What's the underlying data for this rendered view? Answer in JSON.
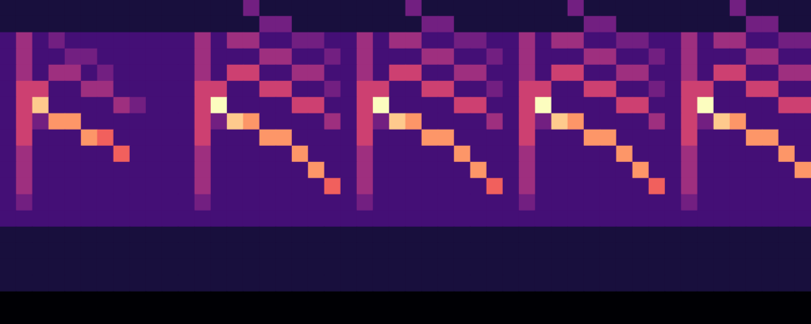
{
  "chart_data": {
    "type": "heatmap",
    "cells": [
      [
        1,
        1,
        1,
        1,
        1,
        1,
        1,
        1,
        1,
        1,
        1,
        1,
        1,
        1,
        1,
        3,
        1,
        1,
        1,
        1,
        1,
        1,
        1,
        1,
        1,
        3,
        1,
        1,
        1,
        1,
        1,
        1,
        1,
        1,
        1,
        3,
        1,
        1,
        1,
        1,
        1,
        1,
        1,
        1,
        1,
        3,
        1,
        1,
        1,
        1
      ],
      [
        1,
        1,
        1,
        1,
        1,
        1,
        1,
        1,
        1,
        1,
        1,
        1,
        1,
        1,
        1,
        1,
        3,
        3,
        1,
        1,
        1,
        1,
        1,
        1,
        1,
        1,
        3,
        3,
        1,
        1,
        1,
        1,
        1,
        1,
        1,
        1,
        3,
        3,
        1,
        1,
        1,
        1,
        1,
        1,
        1,
        1,
        3,
        3,
        1,
        1
      ],
      [
        2,
        4,
        2,
        3,
        2,
        2,
        2,
        2,
        2,
        2,
        2,
        2,
        4,
        2,
        4,
        4,
        2,
        2,
        3,
        3,
        2,
        2,
        4,
        2,
        4,
        4,
        2,
        2,
        3,
        3,
        2,
        2,
        4,
        2,
        4,
        4,
        2,
        2,
        3,
        3,
        2,
        2,
        4,
        2,
        4,
        4,
        2,
        2,
        3,
        3
      ],
      [
        2,
        4,
        2,
        2,
        3,
        3,
        2,
        2,
        2,
        2,
        2,
        2,
        4,
        2,
        2,
        2,
        4,
        4,
        2,
        2,
        3,
        2,
        4,
        2,
        2,
        2,
        4,
        4,
        2,
        2,
        3,
        2,
        4,
        2,
        2,
        2,
        4,
        4,
        2,
        2,
        3,
        2,
        4,
        2,
        2,
        2,
        4,
        4,
        2,
        2
      ],
      [
        2,
        4,
        2,
        4,
        4,
        2,
        3,
        2,
        2,
        2,
        2,
        2,
        4,
        2,
        5,
        5,
        2,
        2,
        4,
        4,
        2,
        2,
        4,
        2,
        5,
        5,
        2,
        2,
        4,
        4,
        2,
        2,
        4,
        2,
        5,
        5,
        2,
        2,
        4,
        4,
        2,
        2,
        4,
        2,
        5,
        5,
        2,
        2,
        4,
        4
      ],
      [
        2,
        5,
        5,
        2,
        2,
        4,
        4,
        2,
        2,
        2,
        2,
        2,
        5,
        5,
        2,
        2,
        5,
        5,
        2,
        2,
        3,
        2,
        5,
        5,
        2,
        2,
        5,
        5,
        2,
        2,
        3,
        2,
        5,
        5,
        2,
        2,
        5,
        5,
        2,
        2,
        3,
        2,
        5,
        5,
        2,
        2,
        5,
        5,
        2,
        2
      ],
      [
        2,
        5,
        8,
        2,
        2,
        2,
        2,
        4,
        3,
        2,
        2,
        2,
        5,
        9,
        2,
        2,
        2,
        2,
        5,
        5,
        2,
        2,
        5,
        9,
        2,
        2,
        2,
        2,
        5,
        5,
        2,
        2,
        5,
        9,
        2,
        2,
        2,
        2,
        5,
        5,
        2,
        2,
        5,
        9,
        2,
        2,
        2,
        2,
        5,
        5
      ],
      [
        2,
        5,
        3,
        7,
        7,
        2,
        2,
        2,
        2,
        2,
        2,
        2,
        5,
        3,
        8,
        7,
        2,
        2,
        2,
        2,
        4,
        2,
        5,
        3,
        8,
        7,
        2,
        2,
        2,
        2,
        4,
        2,
        5,
        3,
        8,
        7,
        2,
        2,
        2,
        2,
        4,
        2,
        5,
        3,
        8,
        7,
        2,
        2,
        2,
        2
      ],
      [
        2,
        5,
        2,
        2,
        2,
        7,
        6,
        2,
        2,
        2,
        2,
        2,
        5,
        2,
        2,
        2,
        7,
        7,
        2,
        2,
        2,
        2,
        5,
        2,
        2,
        2,
        7,
        7,
        2,
        2,
        2,
        2,
        5,
        2,
        2,
        2,
        7,
        7,
        2,
        2,
        2,
        2,
        5,
        2,
        2,
        2,
        7,
        7,
        2,
        2
      ],
      [
        2,
        4,
        2,
        2,
        2,
        2,
        2,
        6,
        2,
        2,
        2,
        2,
        4,
        2,
        2,
        2,
        2,
        2,
        7,
        2,
        2,
        2,
        4,
        2,
        2,
        2,
        2,
        2,
        7,
        2,
        2,
        2,
        4,
        2,
        2,
        2,
        2,
        2,
        7,
        2,
        2,
        2,
        4,
        2,
        2,
        2,
        2,
        2,
        7,
        2
      ],
      [
        2,
        4,
        2,
        2,
        2,
        2,
        2,
        2,
        2,
        2,
        2,
        2,
        4,
        2,
        2,
        2,
        2,
        2,
        2,
        7,
        2,
        2,
        4,
        2,
        2,
        2,
        2,
        2,
        2,
        7,
        2,
        2,
        4,
        2,
        2,
        2,
        2,
        2,
        2,
        7,
        2,
        2,
        4,
        2,
        2,
        2,
        2,
        2,
        2,
        7
      ],
      [
        2,
        4,
        2,
        2,
        2,
        2,
        2,
        2,
        2,
        2,
        2,
        2,
        4,
        2,
        2,
        2,
        2,
        2,
        2,
        2,
        6,
        2,
        4,
        2,
        2,
        2,
        2,
        2,
        2,
        2,
        6,
        2,
        4,
        2,
        2,
        2,
        2,
        2,
        2,
        2,
        6,
        2,
        4,
        2,
        2,
        2,
        2,
        2,
        2,
        2
      ],
      [
        2,
        3,
        2,
        2,
        2,
        2,
        2,
        2,
        2,
        2,
        2,
        2,
        3,
        2,
        2,
        2,
        2,
        2,
        2,
        2,
        2,
        2,
        3,
        2,
        2,
        2,
        2,
        2,
        2,
        2,
        2,
        2,
        3,
        2,
        2,
        2,
        2,
        2,
        2,
        2,
        2,
        2,
        3,
        2,
        2,
        2,
        2,
        2,
        2,
        2
      ],
      [
        2,
        2,
        2,
        2,
        2,
        2,
        2,
        2,
        2,
        2,
        2,
        2,
        2,
        2,
        2,
        2,
        2,
        2,
        2,
        2,
        2,
        2,
        2,
        2,
        2,
        2,
        2,
        2,
        2,
        2,
        2,
        2,
        2,
        2,
        2,
        2,
        2,
        2,
        2,
        2,
        2,
        2,
        2,
        2,
        2,
        2,
        2,
        2,
        2,
        2
      ],
      [
        1,
        1,
        1,
        1,
        1,
        1,
        1,
        1,
        1,
        1,
        1,
        1,
        1,
        1,
        1,
        1,
        1,
        1,
        1,
        1,
        1,
        1,
        1,
        1,
        1,
        1,
        1,
        1,
        1,
        1,
        1,
        1,
        1,
        1,
        1,
        1,
        1,
        1,
        1,
        1,
        1,
        1,
        1,
        1,
        1,
        1,
        1,
        1,
        1,
        1
      ],
      [
        1,
        1,
        1,
        1,
        1,
        1,
        1,
        1,
        1,
        1,
        1,
        1,
        1,
        1,
        1,
        1,
        1,
        1,
        1,
        1,
        1,
        1,
        1,
        1,
        1,
        1,
        1,
        1,
        1,
        1,
        1,
        1,
        1,
        1,
        1,
        1,
        1,
        1,
        1,
        1,
        1,
        1,
        1,
        1,
        1,
        1,
        1,
        1,
        1,
        1
      ],
      [
        1,
        1,
        1,
        1,
        1,
        1,
        1,
        1,
        1,
        1,
        1,
        1,
        1,
        1,
        1,
        1,
        1,
        1,
        1,
        1,
        1,
        1,
        1,
        1,
        1,
        1,
        1,
        1,
        1,
        1,
        1,
        1,
        1,
        1,
        1,
        1,
        1,
        1,
        1,
        1,
        1,
        1,
        1,
        1,
        1,
        1,
        1,
        1,
        1,
        1
      ],
      [
        1,
        1,
        1,
        1,
        1,
        1,
        1,
        1,
        1,
        1,
        1,
        1,
        1,
        1,
        1,
        1,
        1,
        1,
        1,
        1,
        1,
        1,
        1,
        1,
        1,
        1,
        1,
        1,
        1,
        1,
        1,
        1,
        1,
        1,
        1,
        1,
        1,
        1,
        1,
        1,
        1,
        1,
        1,
        1,
        1,
        1,
        1,
        1,
        1,
        1
      ],
      [
        0,
        0,
        0,
        0,
        0,
        0,
        0,
        0,
        0,
        0,
        0,
        0,
        0,
        0,
        0,
        0,
        0,
        0,
        0,
        0,
        0,
        0,
        0,
        0,
        0,
        0,
        0,
        0,
        0,
        0,
        0,
        0,
        0,
        0,
        0,
        0,
        0,
        0,
        0,
        0,
        0,
        0,
        0,
        0,
        0,
        0,
        0,
        0,
        0,
        0
      ],
      [
        0,
        0,
        0,
        0,
        0,
        0,
        0,
        0,
        0,
        0,
        0,
        0,
        0,
        0,
        0,
        0,
        0,
        0,
        0,
        0,
        0,
        0,
        0,
        0,
        0,
        0,
        0,
        0,
        0,
        0,
        0,
        0,
        0,
        0,
        0,
        0,
        0,
        0,
        0,
        0,
        0,
        0,
        0,
        0,
        0,
        0,
        0,
        0,
        0,
        0
      ]
    ],
    "zlim": [
      0,
      9
    ],
    "tick_labels": false,
    "grid": false
  }
}
